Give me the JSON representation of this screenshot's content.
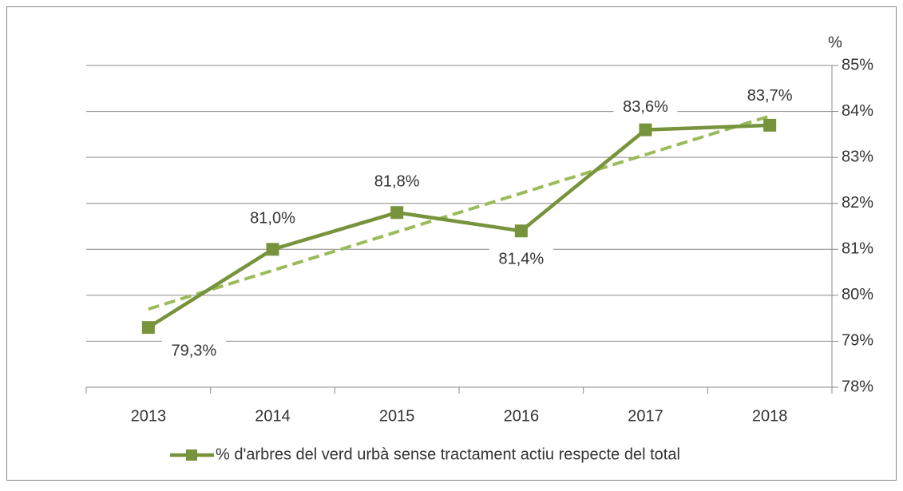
{
  "chart_data": {
    "type": "line",
    "y_axis_label": "%",
    "categories": [
      "2013",
      "2014",
      "2015",
      "2016",
      "2017",
      "2018"
    ],
    "series": [
      {
        "name": "% d'arbres del verd urbà sense tractament actiu respecte del total",
        "color": "#77933c",
        "values": [
          79.3,
          81.0,
          81.8,
          81.4,
          83.6,
          83.7
        ],
        "value_labels": [
          "79,3%",
          "81,0%",
          "81,8%",
          "81,4%",
          "83,6%",
          "83,7%"
        ]
      }
    ],
    "ylim": [
      78,
      85
    ],
    "yticks": [
      {
        "value": 78,
        "label": "78%"
      },
      {
        "value": 79,
        "label": "79%"
      },
      {
        "value": 80,
        "label": "80%"
      },
      {
        "value": 81,
        "label": "81%"
      },
      {
        "value": 82,
        "label": "82%"
      },
      {
        "value": 83,
        "label": "83%"
      },
      {
        "value": 84,
        "label": "84%"
      },
      {
        "value": 85,
        "label": "85%"
      }
    ],
    "y_axis_side": "right",
    "grid": true,
    "trendline": true,
    "trendline_color": "#9bbb59",
    "legend": "bottom"
  }
}
